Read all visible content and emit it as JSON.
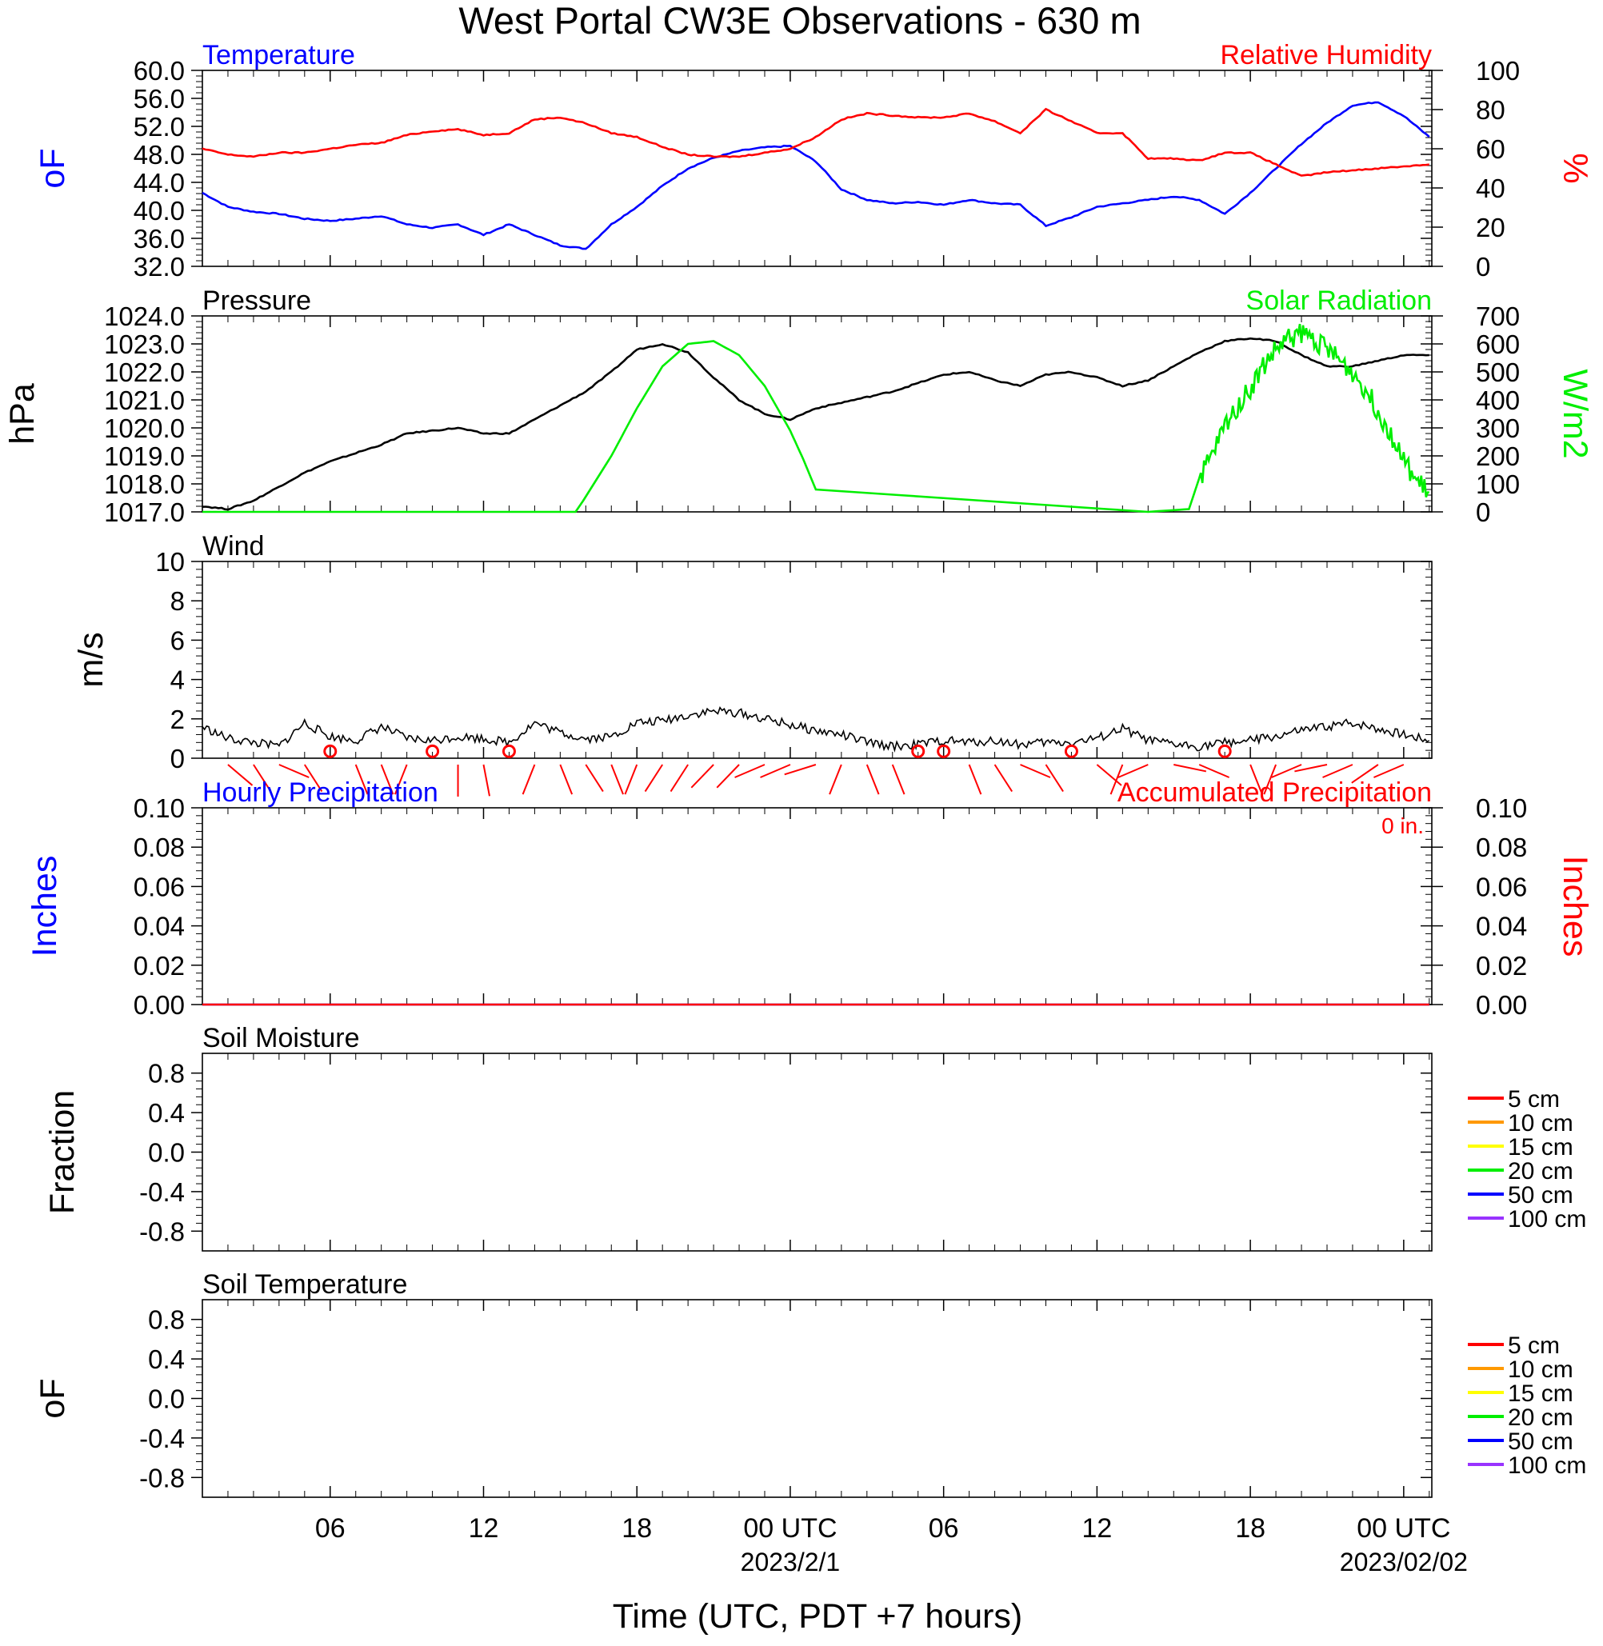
{
  "figure": {
    "title": "West Portal CW3E Observations - 630 m",
    "xlabel": "Time (UTC, PDT +7 hours)",
    "x_ticks": [
      {
        "t": 6,
        "label": "06",
        "sub": ""
      },
      {
        "t": 12,
        "label": "12",
        "sub": ""
      },
      {
        "t": 18,
        "label": "18",
        "sub": ""
      },
      {
        "t": 24,
        "label": "00 UTC",
        "sub": "2023/2/1"
      },
      {
        "t": 30,
        "label": "06",
        "sub": ""
      },
      {
        "t": 36,
        "label": "12",
        "sub": ""
      },
      {
        "t": 42,
        "label": "18",
        "sub": ""
      },
      {
        "t": 48,
        "label": "00 UTC",
        "sub": "2023/02/02"
      }
    ],
    "x_range_hours": [
      1,
      49.1
    ]
  },
  "chart_data": [
    {
      "type": "line",
      "panel": "temperature_rh",
      "left_title": "Temperature",
      "right_title": "Relative Humidity",
      "ylabel_left": "oF",
      "ylabel_right": "%",
      "ylim_left": [
        32,
        60
      ],
      "yticks_left": [
        "32.0",
        "36.0",
        "40.0",
        "44.0",
        "48.0",
        "52.0",
        "56.0",
        "60.0"
      ],
      "ylim_right": [
        0,
        100
      ],
      "yticks_right": [
        "0",
        "20",
        "40",
        "60",
        "80",
        "100"
      ],
      "series": [
        {
          "name": "Temperature",
          "axis": "left",
          "color": "#0000ff",
          "x": [
            1,
            2,
            3,
            4,
            5,
            6,
            7,
            8,
            9,
            10,
            11,
            12,
            13,
            14,
            15,
            16,
            17,
            18,
            19,
            20,
            21,
            22,
            23,
            24,
            25,
            26,
            27,
            28,
            29,
            30,
            31,
            32,
            33,
            34,
            35,
            36,
            37,
            38,
            39,
            40,
            41,
            42,
            43,
            44,
            45,
            46,
            47,
            48,
            49
          ],
          "y": [
            42.5,
            40.5,
            39.8,
            39.5,
            38.8,
            38.5,
            38.8,
            39.2,
            38.0,
            37.5,
            38.0,
            36.5,
            38.0,
            36.5,
            35.0,
            34.5,
            38.0,
            40.5,
            43.5,
            46.0,
            47.5,
            48.5,
            49.0,
            49.2,
            47.0,
            43.0,
            41.5,
            41.0,
            41.2,
            40.8,
            41.5,
            41.0,
            40.8,
            37.8,
            39.0,
            40.5,
            41.0,
            41.5,
            42.0,
            41.5,
            39.5,
            42.5,
            46.0,
            49.5,
            52.5,
            55.0,
            55.5,
            53.5,
            50.5
          ]
        },
        {
          "name": "Relative Humidity",
          "axis": "right",
          "color": "#ff0000",
          "x": [
            1,
            2,
            3,
            4,
            5,
            6,
            7,
            8,
            9,
            10,
            11,
            12,
            13,
            14,
            15,
            16,
            17,
            18,
            19,
            20,
            21,
            22,
            23,
            24,
            25,
            26,
            27,
            28,
            29,
            30,
            31,
            32,
            33,
            34,
            35,
            36,
            37,
            38,
            39,
            40,
            41,
            42,
            43,
            44,
            45,
            46,
            47,
            48,
            49
          ],
          "y": [
            60,
            57,
            56,
            58,
            58,
            60,
            62,
            63,
            67,
            69,
            70,
            67,
            68,
            75,
            76,
            73,
            68,
            66,
            61,
            57,
            56,
            56,
            58,
            60,
            66,
            75,
            78,
            77,
            76,
            76,
            78,
            74,
            68,
            80,
            74,
            68,
            68,
            55,
            55,
            54,
            58,
            58,
            52,
            46,
            48,
            49,
            50,
            51,
            52
          ]
        }
      ]
    },
    {
      "type": "line",
      "panel": "pressure_solar",
      "left_title": "Pressure",
      "right_title": "Solar Radiation",
      "ylabel_left": "hPa",
      "ylabel_right": "W/m2",
      "ylim_left": [
        1017,
        1024
      ],
      "yticks_left": [
        "1017.0",
        "1018.0",
        "1019.0",
        "1020.0",
        "1021.0",
        "1022.0",
        "1023.0",
        "1024.0"
      ],
      "ylim_right": [
        0,
        700
      ],
      "yticks_right": [
        "0",
        "100",
        "200",
        "300",
        "400",
        "500",
        "600",
        "700"
      ],
      "series": [
        {
          "name": "Pressure",
          "axis": "left",
          "color": "#000000",
          "x": [
            1,
            2,
            3,
            4,
            5,
            6,
            7,
            8,
            9,
            10,
            11,
            12,
            13,
            14,
            15,
            16,
            17,
            18,
            19,
            20,
            21,
            22,
            23,
            24,
            25,
            26,
            27,
            28,
            29,
            30,
            31,
            32,
            33,
            34,
            35,
            36,
            37,
            38,
            39,
            40,
            41,
            42,
            43,
            44,
            45,
            46,
            47,
            48,
            49
          ],
          "y": [
            1017.2,
            1017.1,
            1017.4,
            1017.9,
            1018.4,
            1018.8,
            1019.1,
            1019.4,
            1019.8,
            1019.9,
            1020.0,
            1019.8,
            1019.8,
            1020.3,
            1020.8,
            1021.3,
            1022.0,
            1022.8,
            1023.0,
            1022.7,
            1021.8,
            1021.0,
            1020.5,
            1020.3,
            1020.7,
            1020.9,
            1021.1,
            1021.3,
            1021.6,
            1021.9,
            1022.0,
            1021.7,
            1021.5,
            1021.9,
            1022.0,
            1021.8,
            1021.5,
            1021.7,
            1022.2,
            1022.7,
            1023.1,
            1023.2,
            1023.1,
            1022.6,
            1022.2,
            1022.2,
            1022.4,
            1022.6,
            1022.6
          ]
        },
        {
          "name": "Solar Radiation",
          "axis": "right",
          "color": "#00ee00",
          "x": [
            1,
            14,
            15.6,
            15.9,
            17,
            18,
            19,
            20,
            21,
            22,
            23,
            24,
            24.5,
            25,
            38,
            39.6,
            40,
            40.5,
            41,
            41.5,
            42,
            42.5,
            43,
            43.5,
            44,
            44.5,
            45,
            45.5,
            46,
            46.5,
            47,
            47.5,
            48,
            48.5,
            49
          ],
          "y": [
            0,
            0,
            0,
            40,
            200,
            370,
            520,
            600,
            610,
            560,
            450,
            290,
            190,
            80,
            0,
            10,
            120,
            200,
            310,
            380,
            440,
            520,
            580,
            620,
            640,
            620,
            580,
            540,
            500,
            440,
            360,
            280,
            180,
            110,
            70
          ]
        }
      ]
    },
    {
      "type": "line",
      "panel": "wind",
      "left_title": "Wind",
      "ylabel_left": "m/s",
      "ylim_left": [
        0,
        10
      ],
      "yticks_left": [
        "0",
        "2",
        "4",
        "6",
        "8",
        "10"
      ],
      "series": [
        {
          "name": "Wind",
          "axis": "left",
          "color": "#000000",
          "x": [
            1,
            2,
            3,
            4,
            5,
            6,
            7,
            8,
            9,
            10,
            11,
            12,
            13,
            14,
            15,
            16,
            17,
            18,
            19,
            20,
            21,
            22,
            23,
            24,
            25,
            26,
            27,
            28,
            29,
            30,
            31,
            32,
            33,
            34,
            35,
            36,
            37,
            38,
            39,
            40,
            41,
            42,
            43,
            44,
            45,
            46,
            47,
            48,
            49
          ],
          "y": [
            1.6,
            1.0,
            0.8,
            0.6,
            1.8,
            1.1,
            0.9,
            1.6,
            1.0,
            0.9,
            1.1,
            1.0,
            0.8,
            1.8,
            1.3,
            1.0,
            1.1,
            1.8,
            1.9,
            2.2,
            2.4,
            2.3,
            2.0,
            1.7,
            1.4,
            1.2,
            0.8,
            0.6,
            0.7,
            0.9,
            0.8,
            0.9,
            0.7,
            0.8,
            0.8,
            1.0,
            1.5,
            0.9,
            0.7,
            0.6,
            0.8,
            0.9,
            1.1,
            1.4,
            1.6,
            1.8,
            1.5,
            1.2,
            0.9
          ]
        },
        {
          "name": "Wind barbs",
          "axis": "left",
          "color": "#ff0000",
          "kind": "barbs",
          "x": [
            2,
            3,
            4,
            5,
            6,
            7,
            8,
            9,
            10,
            11,
            12,
            13,
            14,
            15,
            16,
            17,
            18,
            19,
            20,
            21,
            22,
            23,
            24,
            25,
            26,
            27,
            28,
            29,
            30,
            31,
            32,
            33,
            34,
            35,
            36,
            37,
            38,
            39,
            40,
            41,
            42,
            43,
            44,
            45,
            46,
            47,
            48
          ],
          "dir_deg": [
            135,
            150,
            120,
            150,
            0,
            160,
            160,
            200,
            0,
            180,
            170,
            0,
            200,
            160,
            150,
            160,
            200,
            210,
            210,
            220,
            220,
            240,
            240,
            245,
            200,
            160,
            160,
            0,
            0,
            160,
            150,
            120,
            150,
            0,
            135,
            200,
            240,
            110,
            120,
            0,
            160,
            200,
            240,
            250,
            240,
            230,
            240
          ],
          "calm": [
            false,
            false,
            false,
            false,
            true,
            false,
            false,
            false,
            true,
            false,
            false,
            true,
            false,
            false,
            false,
            false,
            false,
            false,
            false,
            false,
            false,
            false,
            false,
            false,
            false,
            false,
            false,
            true,
            true,
            false,
            false,
            false,
            false,
            true,
            false,
            false,
            false,
            false,
            false,
            true,
            false,
            false,
            false,
            false,
            false,
            false,
            false
          ]
        }
      ]
    },
    {
      "type": "line",
      "panel": "precipitation",
      "left_title": "Hourly Precipitation",
      "right_title": "Accumulated Precipitation",
      "right_note": "0 in.",
      "ylabel_left": "Inches",
      "ylabel_right": "Inches",
      "ylim_left": [
        0,
        0.1
      ],
      "yticks_left": [
        "0.00",
        "0.02",
        "0.04",
        "0.06",
        "0.08",
        "0.10"
      ],
      "ylim_right": [
        0,
        0.1
      ],
      "yticks_right": [
        "0.00",
        "0.02",
        "0.04",
        "0.06",
        "0.08",
        "0.10"
      ],
      "series": [
        {
          "name": "Hourly Precipitation",
          "axis": "left",
          "color": "#0000ff",
          "x": [
            1,
            49
          ],
          "y": [
            0,
            0
          ]
        },
        {
          "name": "Accumulated Precipitation",
          "axis": "right",
          "color": "#ff0000",
          "x": [
            1,
            49
          ],
          "y": [
            0,
            0
          ]
        }
      ]
    },
    {
      "type": "line",
      "panel": "soil_moisture",
      "left_title": "Soil Moisture",
      "ylabel_left": "Fraction",
      "ylim_left": [
        -1,
        1
      ],
      "yticks_left": [
        "-0.8",
        "-0.4",
        "0.0",
        "0.4",
        "0.8"
      ],
      "legend": [
        {
          "label": "5 cm",
          "color": "#ff0000"
        },
        {
          "label": "10 cm",
          "color": "#ff9900"
        },
        {
          "label": "15 cm",
          "color": "#ffff00"
        },
        {
          "label": "20 cm",
          "color": "#00ee00"
        },
        {
          "label": "50 cm",
          "color": "#0000ff"
        },
        {
          "label": "100 cm",
          "color": "#9933ff"
        }
      ],
      "series": []
    },
    {
      "type": "line",
      "panel": "soil_temperature",
      "left_title": "Soil Temperature",
      "ylabel_left": "oF",
      "ylim_left": [
        -1,
        1
      ],
      "yticks_left": [
        "-0.8",
        "-0.4",
        "0.0",
        "0.4",
        "0.8"
      ],
      "legend": [
        {
          "label": "5 cm",
          "color": "#ff0000"
        },
        {
          "label": "10 cm",
          "color": "#ff9900"
        },
        {
          "label": "15 cm",
          "color": "#ffff00"
        },
        {
          "label": "20 cm",
          "color": "#00ee00"
        },
        {
          "label": "50 cm",
          "color": "#0000ff"
        },
        {
          "label": "100 cm",
          "color": "#9933ff"
        }
      ],
      "series": []
    }
  ]
}
